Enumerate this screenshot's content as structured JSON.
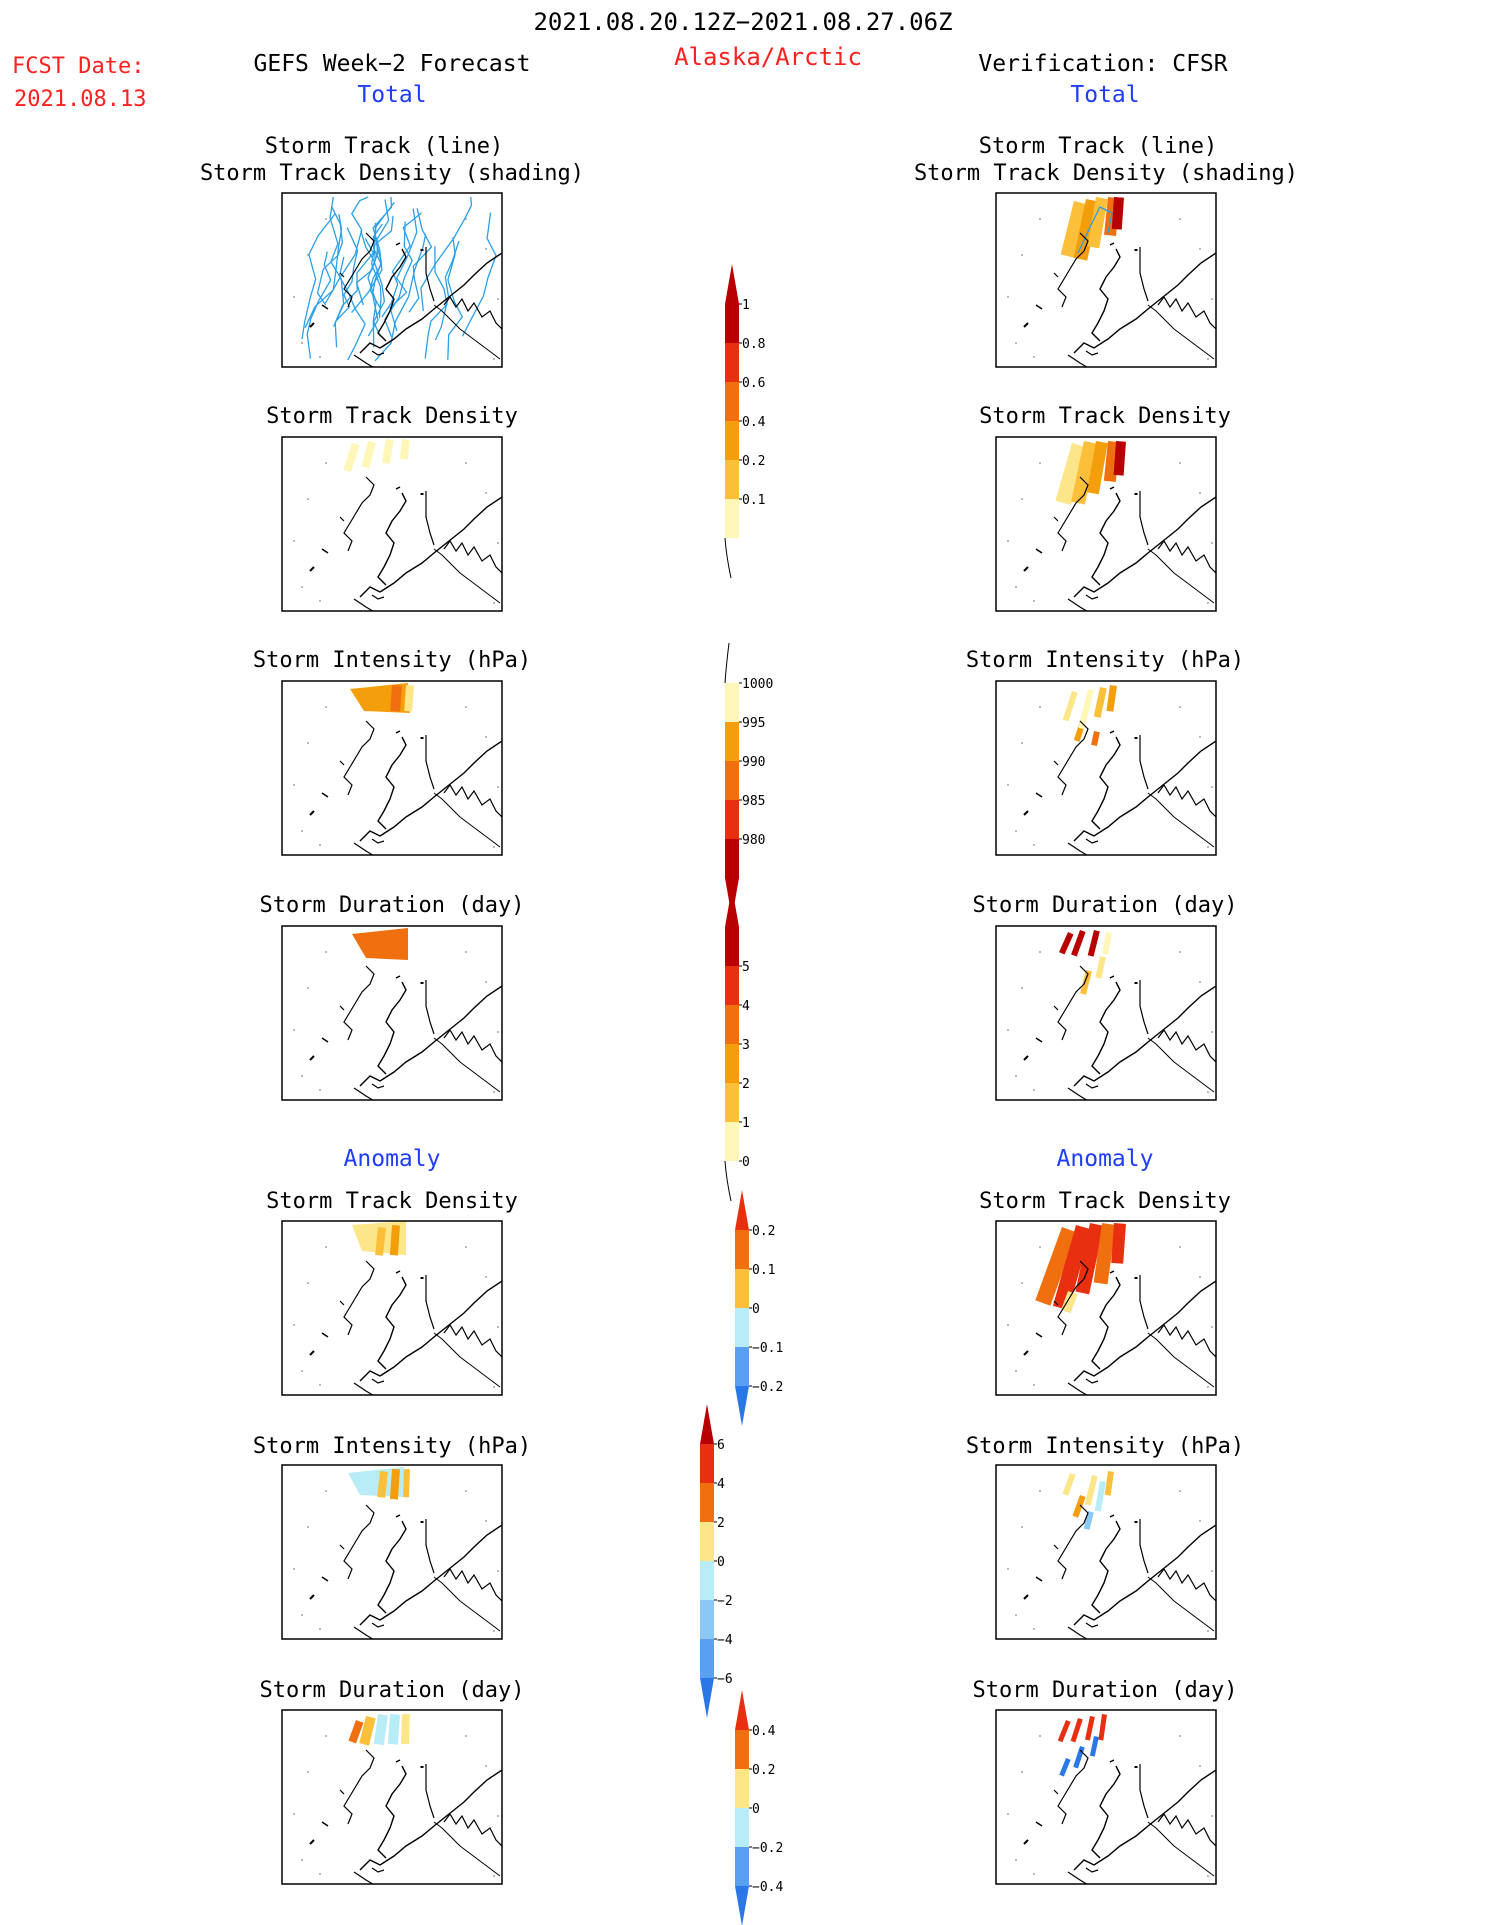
{
  "header": {
    "period": "2021.08.20.12Z−2021.08.27.06Z",
    "fcst_label": "FCST Date:",
    "fcst_date": "2021.08.13",
    "region": "Alaska/Arctic",
    "left_title": "GEFS Week−2 Forecast",
    "right_title": "Verification: CFSR",
    "left_total": "Total",
    "right_total": "Total",
    "left_anomaly": "Anomaly",
    "right_anomaly": "Anomaly"
  },
  "panels": {
    "r0_line1": "Storm Track (line)",
    "r0_line2": "Storm Track Density (shading)",
    "r1": "Storm Track Density",
    "r2": "Storm Intensity (hPa)",
    "r3": "Storm Duration (day)",
    "r4": "Storm Track Density",
    "r5": "Storm Intensity (hPa)",
    "r6": "Storm Duration (day)"
  },
  "colorbars": {
    "density": [
      "0.1",
      "0.2",
      "0.4",
      "0.6",
      "0.8",
      "1"
    ],
    "intensity": [
      "1000",
      "995",
      "990",
      "985",
      "980"
    ],
    "duration": [
      "0",
      "1",
      "2",
      "3",
      "4",
      "5"
    ],
    "density_anom": [
      "−0.2",
      "−0.1",
      "0",
      "0.1",
      "0.2"
    ],
    "intensity_anom": [
      "−6",
      "−4",
      "−2",
      "0",
      "2",
      "4",
      "6"
    ],
    "duration_anom": [
      "−0.4",
      "−0.2",
      "0",
      "0.2",
      "0.4"
    ]
  },
  "colors": {
    "red_text": "#ff2020",
    "blue_text": "#1f3cff",
    "track_line": "#2aa0e8",
    "warm": [
      "#fff7b8",
      "#fde68a",
      "#fbbf3a",
      "#f59e0b",
      "#f07010",
      "#e83010",
      "#b80000"
    ],
    "cool": [
      "#b8ecf6",
      "#8cc8f4",
      "#5aa0f0",
      "#2a78e8"
    ]
  }
}
